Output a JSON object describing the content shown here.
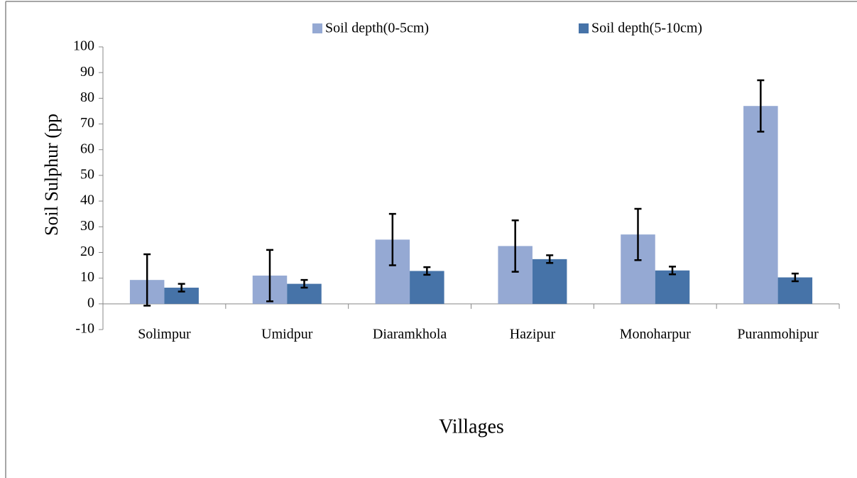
{
  "chart_data": {
    "type": "bar",
    "xlabel": "Villages",
    "ylabel": "Soil Sulphur (pp",
    "categories": [
      "Solimpur",
      "Umidpur",
      "Diaramkhola",
      "Hazipur",
      "Monoharpur",
      "Puranmohipur"
    ],
    "series": [
      {
        "name": "Soil depth(0-5cm)",
        "color": "#95a9d3",
        "values": [
          9.3,
          11,
          25,
          22.5,
          27,
          77
        ],
        "errors": [
          10,
          10,
          10,
          10,
          10,
          10
        ]
      },
      {
        "name": "Soil depth(5-10cm)",
        "color": "#4673a8",
        "values": [
          6.3,
          7.8,
          12.8,
          17.4,
          13,
          10.3
        ],
        "errors": [
          1.5,
          1.5,
          1.5,
          1.5,
          1.5,
          1.5
        ]
      }
    ],
    "ylim": [
      -10,
      100
    ],
    "yticks": [
      -10,
      0,
      10,
      20,
      30,
      40,
      50,
      60,
      70,
      80,
      90,
      100
    ],
    "legend": "top"
  }
}
